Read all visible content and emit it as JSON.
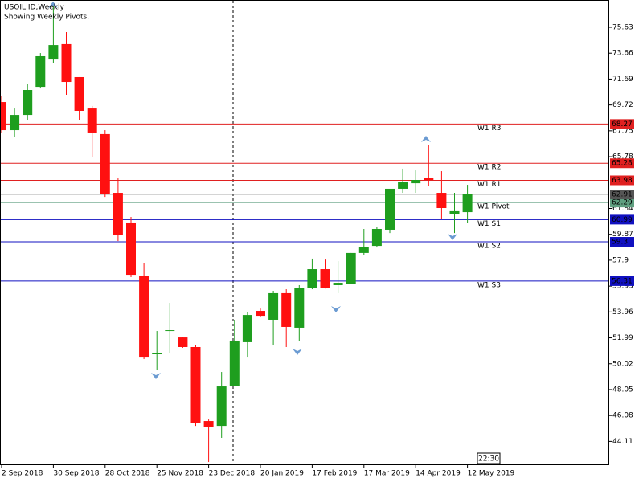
{
  "chart_data": {
    "type": "candlestick",
    "title": "USOIL.ID,Weekly",
    "subtitle": "Showing Weekly Pivots.",
    "time_label": "22:30",
    "categories": [
      "2 Sep 2018",
      null,
      null,
      null,
      "30 Sep 2018",
      null,
      null,
      null,
      "28 Oct 2018",
      null,
      null,
      null,
      "25 Nov 2018",
      null,
      null,
      null,
      "23 Dec 2018",
      null,
      null,
      null,
      "20 Jan 2019",
      null,
      null,
      null,
      "17 Feb 2019",
      null,
      null,
      null,
      "17 Mar 2019",
      null,
      null,
      null,
      "14 Apr 2019",
      null,
      null,
      null,
      "12 May 2019"
    ],
    "open": [
      69.94,
      67.8,
      68.96,
      71.1,
      73.18,
      74.35,
      71.84,
      69.45,
      67.5,
      63.03,
      60.77,
      56.73,
      50.74,
      52.51,
      52.02,
      51.29,
      45.66,
      45.29,
      48.35,
      51.66,
      54.04,
      53.37,
      55.39,
      52.76,
      55.81,
      57.22,
      56.0,
      56.06,
      58.45,
      58.99,
      60.22,
      63.34,
      63.76,
      64.19,
      63.03,
      61.44,
      61.56
    ],
    "high": [
      70.37,
      69.45,
      71.29,
      73.67,
      77.4,
      75.26,
      71.84,
      69.64,
      67.8,
      64.13,
      61.2,
      57.65,
      52.51,
      54.65,
      52.08,
      51.41,
      45.78,
      49.39,
      53.37,
      53.98,
      54.22,
      55.57,
      55.69,
      56.0,
      58.02,
      57.95,
      57.83,
      58.45,
      60.28,
      60.46,
      63.34,
      64.87,
      64.74,
      66.7,
      64.68,
      63.03,
      63.64
    ],
    "low": [
      67.62,
      67.31,
      68.54,
      70.98,
      72.94,
      70.49,
      68.54,
      65.78,
      62.72,
      59.36,
      56.61,
      50.37,
      49.57,
      50.8,
      51.23,
      45.29,
      42.54,
      44.38,
      48.35,
      50.49,
      53.55,
      51.41,
      51.29,
      51.72,
      55.69,
      55.75,
      55.39,
      56.06,
      58.26,
      58.87,
      59.97,
      63.03,
      63.03,
      63.52,
      61.07,
      59.97,
      60.71
    ],
    "close": [
      67.8,
      68.96,
      70.86,
      73.43,
      74.28,
      71.47,
      69.27,
      67.62,
      62.91,
      59.79,
      56.79,
      50.49,
      50.8,
      52.57,
      51.29,
      45.48,
      45.23,
      48.29,
      51.78,
      53.73,
      53.67,
      55.39,
      52.82,
      55.81,
      57.22,
      55.81,
      56.18,
      58.45,
      58.93,
      60.28,
      63.34,
      63.83,
      64.01,
      64.01,
      61.87,
      61.63,
      62.91
    ],
    "up_color": "#1e9e1e",
    "down_color": "#ff1010",
    "ylim": [
      42.36,
      77.71
    ],
    "yticks": [
      44.11,
      46.08,
      48.05,
      50.02,
      51.99,
      53.96,
      55.93,
      57.9,
      59.87,
      61.84,
      65.78,
      67.75,
      69.72,
      71.69,
      73.66,
      75.63
    ],
    "pivots": [
      {
        "name": "W1 R3",
        "value": 68.27,
        "color": "#e02020"
      },
      {
        "name": "W1 R2",
        "value": 65.28,
        "color": "#e02020"
      },
      {
        "name": "W1 R1",
        "value": 63.98,
        "color": "#e02020"
      },
      {
        "name": "W1 Pivot",
        "value": 62.29,
        "color": "#5f9f80"
      },
      {
        "name": "W1 S1",
        "value": 60.99,
        "color": "#1010c0"
      },
      {
        "name": "W1 S2",
        "value": 59.3,
        "color": "#1010c0"
      },
      {
        "name": "W1 S3",
        "value": 56.31,
        "color": "#1010c0"
      }
    ],
    "current_price": 62.91,
    "current_color": "#555555"
  }
}
